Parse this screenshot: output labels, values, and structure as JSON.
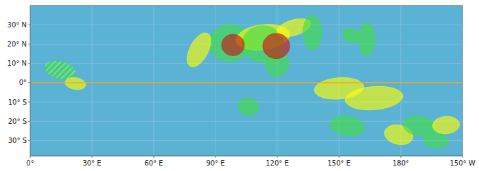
{
  "chart_data": {
    "type": "map",
    "xlim": [
      0,
      210
    ],
    "ylim": [
      -38,
      40
    ],
    "xticks": [
      {
        "value": 0,
        "label": "0°"
      },
      {
        "value": 30,
        "label": "30° E"
      },
      {
        "value": 60,
        "label": "60° E"
      },
      {
        "value": 90,
        "label": "90° E"
      },
      {
        "value": 120,
        "label": "120° E"
      },
      {
        "value": 150,
        "label": "150° E"
      },
      {
        "value": 180,
        "label": "180°"
      },
      {
        "value": 210,
        "label": "150° W"
      }
    ],
    "yticks": [
      {
        "value": 30,
        "label": "30° N"
      },
      {
        "value": 20,
        "label": "20° N"
      },
      {
        "value": 10,
        "label": "10° N"
      },
      {
        "value": 0,
        "label": "0°"
      },
      {
        "value": -10,
        "label": "10° S"
      },
      {
        "value": -20,
        "label": "20° S"
      },
      {
        "value": -30,
        "label": "30° S"
      }
    ],
    "grid": true,
    "background_color": "#5ab3d5",
    "grid_color": "#8fbfd8",
    "reference_line": {
      "y": 0,
      "color": "#ffa500"
    },
    "ellipses": [
      {
        "cx": 97.0,
        "cy": 20.5,
        "rx": 10.0,
        "ry": 9.5,
        "angle": 0,
        "color": "#44dd44"
      },
      {
        "cx": 113.0,
        "cy": 23.5,
        "rx": 13.0,
        "ry": 6.5,
        "angle": 8,
        "color": "#ffff00"
      },
      {
        "cx": 113.0,
        "cy": 20.0,
        "rx": 10.0,
        "ry": 9.5,
        "angle": -5,
        "color": "#44dd44"
      },
      {
        "cx": 14.5,
        "cy": 6.5,
        "rx": 7.5,
        "ry": 4.5,
        "angle": -15,
        "color": "#44dd44",
        "marker": "hatched"
      },
      {
        "cx": 22.0,
        "cy": -0.5,
        "rx": 5.0,
        "ry": 3.0,
        "angle": -10,
        "color": "#ffff00"
      },
      {
        "cx": 82.0,
        "cy": 17.0,
        "rx": 4.5,
        "ry": 9.5,
        "angle": -25,
        "color": "#ffff00"
      },
      {
        "cx": 120.0,
        "cy": 9.5,
        "rx": 5.5,
        "ry": 6.5,
        "angle": -15,
        "color": "#44dd44"
      },
      {
        "cx": 128.0,
        "cy": 28.5,
        "rx": 8.5,
        "ry": 4.0,
        "angle": 18,
        "color": "#ffff00"
      },
      {
        "cx": 137.0,
        "cy": 26.0,
        "rx": 4.5,
        "ry": 9.0,
        "angle": 0,
        "color": "#44dd44"
      },
      {
        "cx": 106.0,
        "cy": -12.5,
        "rx": 5.0,
        "ry": 4.5,
        "angle": -20,
        "color": "#44dd44"
      },
      {
        "cx": 150.0,
        "cy": -3.0,
        "rx": 12.0,
        "ry": 5.5,
        "angle": 5,
        "color": "#ffff00"
      },
      {
        "cx": 156.0,
        "cy": 24.5,
        "rx": 4.5,
        "ry": 3.5,
        "angle": -30,
        "color": "#44dd44"
      },
      {
        "cx": 163.5,
        "cy": 22.5,
        "rx": 4.0,
        "ry": 8.5,
        "angle": 0,
        "color": "#44dd44"
      },
      {
        "cx": 154.0,
        "cy": -22.5,
        "rx": 8.5,
        "ry": 5.0,
        "angle": -10,
        "color": "#44dd44"
      },
      {
        "cx": 167.0,
        "cy": -8.0,
        "rx": 14.0,
        "ry": 6.0,
        "angle": 5,
        "color": "#ffff00"
      },
      {
        "cx": 179.0,
        "cy": -27.0,
        "rx": 7.0,
        "ry": 5.0,
        "angle": -15,
        "color": "#ffff00"
      },
      {
        "cx": 189.0,
        "cy": -22.5,
        "rx": 8.0,
        "ry": 5.0,
        "angle": -10,
        "color": "#44dd44"
      },
      {
        "cx": 197.0,
        "cy": -30.0,
        "rx": 6.0,
        "ry": 4.0,
        "angle": -5,
        "color": "#44dd44"
      },
      {
        "cx": 202.0,
        "cy": -22.0,
        "rx": 6.5,
        "ry": 4.5,
        "angle": 5,
        "color": "#ffff00"
      },
      {
        "cx": 98.5,
        "cy": 19.5,
        "rx": 5.5,
        "ry": 5.5,
        "angle": 0,
        "color": "#cc1111"
      },
      {
        "cx": 119.5,
        "cy": 19.0,
        "rx": 6.5,
        "ry": 6.5,
        "angle": 0,
        "color": "#cc1111"
      }
    ]
  }
}
